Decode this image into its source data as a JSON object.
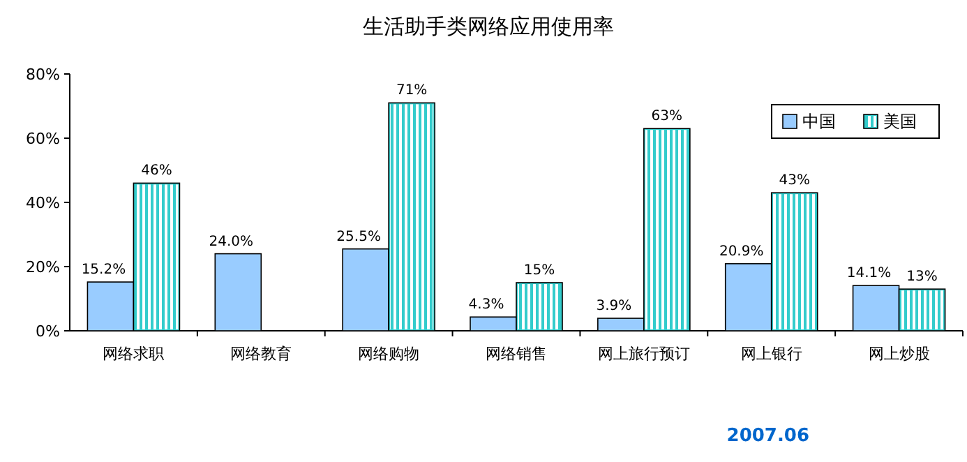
{
  "chart_data": {
    "type": "bar",
    "title": "生活助手类网络应用使用率",
    "categories": [
      "网络求职",
      "网络教育",
      "网络购物",
      "网络销售",
      "网上旅行预订",
      "网上银行",
      "网上炒股"
    ],
    "series": [
      {
        "name": "中国",
        "color": "#99ccff",
        "values": [
          15.2,
          24.0,
          25.5,
          4.3,
          3.9,
          20.9,
          14.1
        ],
        "value_labels": [
          "15.2%",
          "24.0%",
          "25.5%",
          "4.3%",
          "3.9%",
          "20.9%",
          "14.1%"
        ]
      },
      {
        "name": "美国",
        "color": "#33cccc",
        "values": [
          46,
          null,
          71,
          15,
          63,
          43,
          13
        ],
        "value_labels": [
          "46%",
          null,
          "71%",
          "15%",
          "63%",
          "43%",
          "13%"
        ]
      }
    ],
    "ylim": [
      0,
      80
    ],
    "yticks": [
      {
        "value": 0,
        "label": "0%"
      },
      {
        "value": 20,
        "label": "20%"
      },
      {
        "value": 40,
        "label": "40%"
      },
      {
        "value": 60,
        "label": "60%"
      },
      {
        "value": 80,
        "label": "80%"
      }
    ],
    "legend": "top right",
    "grid": false,
    "annotations": [
      "2007.06"
    ]
  }
}
